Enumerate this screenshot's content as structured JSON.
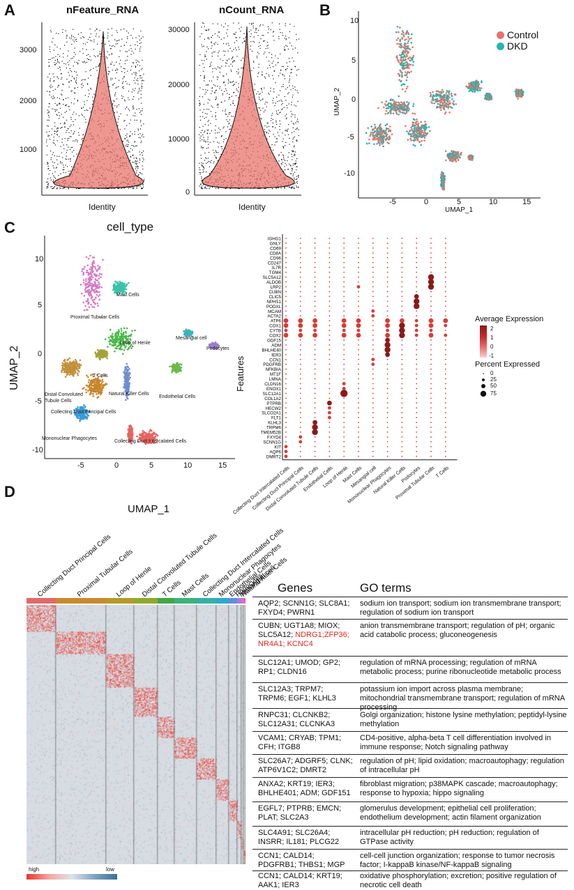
{
  "panels": {
    "a": "A",
    "b": "B",
    "c": "C",
    "d": "D"
  },
  "violin_feature": {
    "title": "nFeature_RNA",
    "xlabel": "Identity",
    "yticks": [
      "1000",
      "2000",
      "3000"
    ]
  },
  "violin_count": {
    "title": "nCount_RNA",
    "xlabel": "Identity",
    "yticks": [
      "0",
      "10000",
      "20000",
      "30000"
    ]
  },
  "umap_b": {
    "xlabel": "UMAP_1",
    "ylabel": "UMAP_2",
    "xticks": [
      "-5",
      "0",
      "5",
      "10",
      "15"
    ],
    "yticks": [
      "10",
      "5",
      "0",
      "-5",
      "-10"
    ],
    "legend": [
      {
        "label": "Control",
        "color": "#e8736b"
      },
      {
        "label": "DKD",
        "color": "#2ab3ad"
      }
    ]
  },
  "umap_c": {
    "title": "cell_type",
    "xlabel": "UMAP_1",
    "ylabel": "UMAP_2",
    "xticks": [
      "-5",
      "0",
      "5",
      "10",
      "15"
    ],
    "yticks": [
      "10",
      "5",
      "0",
      "-5",
      "-10"
    ],
    "cluster_labels": [
      "Proximal Tubular Cells",
      "Mast Cells",
      "Loop of Henle",
      "Mesangial cell",
      "Podocytes",
      "T Cells",
      "Distal Convoluted Tubule Cells",
      "Natural Killer Cells",
      "Endothelial Cells",
      "Collecting Duct Principal Cells",
      "Mononuclear Phagocytes",
      "Collecting Duct Intercalated Cells"
    ]
  },
  "dotplot": {
    "ylabel": "Features",
    "genes": [
      "IGHG1",
      "GNLY",
      "CD69",
      "CD8A",
      "CD96",
      "CD247",
      "IL7R",
      "TGM4",
      "SLC5A12",
      "ALDOB",
      "LRP2",
      "CUBN",
      "CLIC5",
      "NPHS1",
      "PODXL",
      "MCAM",
      "ACTA2",
      "ATP6",
      "COX1",
      "CYTB",
      "COX2",
      "GDF15",
      "ADM",
      "BHLHE40",
      "IER3",
      "CCN1",
      "PDGFRB",
      "NFKBIA",
      "MT1F",
      "LMNA",
      "CLDN16",
      "ENOX1",
      "SLC12A1",
      "COL1A2",
      "PTPRB",
      "HECW2",
      "SLCO2A1",
      "FLT1",
      "KLHL3",
      "TRPM6",
      "TMEM52B",
      "FXYD4",
      "SCNN1G",
      "KIT",
      "AQP6",
      "DMRT2"
    ],
    "cell_types": [
      "Collecting Duct Intercalated Cells",
      "Collecting Duct Principal Cells",
      "Distal Convoluted Tubule Cells",
      "Endothelial Cells",
      "Loop of Henle",
      "Mast Cells",
      "Mesangial cell",
      "Mononuclear Phagocytes",
      "Natural Killer Cells",
      "Podocytes",
      "Proximal Tubular Cells",
      "T Cells"
    ],
    "legend_avg_title": "Average Expression",
    "legend_avg_ticks": [
      "2",
      "1",
      "0",
      "-1"
    ],
    "legend_pct_title": "Percent Expressed",
    "legend_pct_ticks": [
      "0",
      "25",
      "50",
      "75"
    ]
  },
  "heatmap": {
    "columns": [
      "Collecting Duct Principal Cells",
      "Proximal Tubular Cells",
      "Loop of Henle",
      "Distal Convoluted Tubule Cells",
      "T Cells",
      "Mast Cells",
      "Collecting Duct Intercalated Cells",
      "Mononuclear Phagocytes",
      "Endothelial Cells",
      "Podocytes",
      "Mesangial cell",
      "Natural Killer Cells"
    ],
    "colors": [
      "#e06a6a",
      "#c98a2e",
      "#b39a2a",
      "#8eaa2c",
      "#43a843",
      "#3db27a",
      "#34b0a8",
      "#2fa8cf",
      "#5f8fe0",
      "#9f7fe0",
      "#d36fd6",
      "#e06aa0"
    ],
    "legend_high": "high",
    "legend_low": "low"
  },
  "table": {
    "header_genes": "Genes",
    "header_go": "GO terms",
    "rows": [
      {
        "genes": "AQP2; SCNN1G; SLC8A1; FXYD4; PWRN1",
        "go": "sodium ion transport; sodium ion transmembrane transport; regulation of sodium ion transport"
      },
      {
        "genes": "CUBN; UGT1A8; MIOX; SLC5A12;",
        "genes_red": "NDRG1;ZFP36; NR4A1; KCNC4",
        "go": "anion transmembrane transport; regulation of pH; organic acid catabolic process; gluconeogenesis"
      },
      {
        "genes": "SLC12A1; UMOD; GP2; RP1; CLDN16",
        "go": "regulation of mRNA processing; regulation of mRNA metabolic process; purine ribonucleotide metabolic process"
      },
      {
        "genes": "SLC12A3; TRPM7; TRPM6; EGF1; KLHL3",
        "go": "potassium ion import across plasma membrane; mitochondrial transmembrane transport; regulation of mRNA processing"
      },
      {
        "genes": "RNPC31; CLCNKB2; SLC12A31; CLCNKA3",
        "go": "Golgi organization; histone lysine methylation; peptidyl-lysine methylation"
      },
      {
        "genes": "VCAM1; CRYAB; TPM1; CFH; ITGB8",
        "go": "CD4-positive, alpha-beta T cell differentiation involved in immune response; Notch signaling pathway"
      },
      {
        "genes": "SLC26A7; ADGRF5; CLNK; ATP6V1C2; DMRT2",
        "go": "regulation of pH; lipid oxidation; macroautophagy; regulation of intracellular pH"
      },
      {
        "genes": "ANXA2; KRT19; IER3; BHLHE401; ADM; GDF151",
        "go": "fibroblast migration; p38MAPK cascade; macroautophagy; response to hypoxia; hippo signaling"
      },
      {
        "genes": "EGFL7; PTPRB; EMCN; PLAT; SLC2A3",
        "go": "glomerulus development; epithelial cell proliferation; endothelium development; actin filament organization"
      },
      {
        "genes": "SLC4A91; SLC26A4; INSRR; IL181; PLCG22",
        "go": "intracellular pH reduction; pH reduction; regulation of GTPase activity"
      },
      {
        "genes": "CCN1; CALD14; PDGFRB1; THBS1; MGP",
        "go": "cell-cell junction organization; response to tumor necrosis factor; I-kappaB kinase/NF-kappaB signaling"
      },
      {
        "genes": "CCN1; CALD14; KRT19; AAK1; IER3",
        "go": "oxidative phosphorylation; excretion; positive regulation of necrotic cell death"
      }
    ]
  }
}
